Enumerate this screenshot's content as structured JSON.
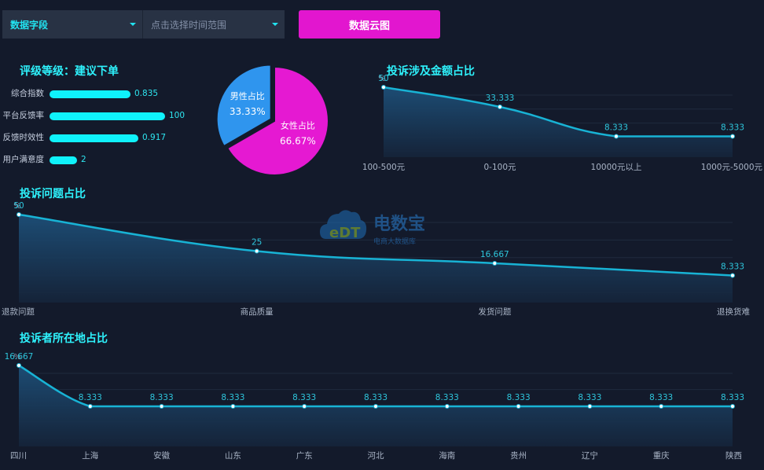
{
  "toolbar": {
    "field_select_label": "数据字段",
    "time_select_placeholder": "点击选择时间范围",
    "wordcloud_button_label": "数据云图"
  },
  "watermark": {
    "logo_text": "eDT",
    "brand_cn": "电数宝",
    "brand_sub": "电商大数据库"
  },
  "colors": {
    "background": "#131a2b",
    "accent_cyan": "#0ff2fb",
    "pie_female": "#e519d2",
    "pie_male": "#2f95ee",
    "line": "#18b3d5",
    "button": "#e216cf"
  },
  "chart_data": [
    {
      "id": "rating",
      "type": "bar",
      "orientation": "horizontal",
      "title": "评级等级：建议下单",
      "categories": [
        "综合指数",
        "平台反馈率",
        "反馈时效性",
        "用户满意度"
      ],
      "values": [
        0.835,
        100,
        0.917,
        2
      ]
    },
    {
      "id": "gender",
      "type": "pie",
      "slices": [
        {
          "label": "女性占比",
          "value": 66.67,
          "value_label": "66.67%",
          "color": "#e519d2"
        },
        {
          "label": "男性占比",
          "value": 33.33,
          "value_label": "33.33%",
          "color": "#2f95ee"
        }
      ]
    },
    {
      "id": "amount",
      "type": "area",
      "title": "投诉涉及金额占比",
      "ylabel": "%",
      "ylim": [
        0,
        50
      ],
      "categories": [
        "100-500元",
        "0-100元",
        "10000元以上",
        "1000元-5000元"
      ],
      "values": [
        50,
        33.333,
        8.333,
        8.333
      ],
      "value_labels": [
        "50",
        "33.333",
        "8.333",
        "8.333"
      ]
    },
    {
      "id": "issue",
      "type": "area",
      "title": "投诉问题占比",
      "ylabel": "%",
      "ylim": [
        0,
        50
      ],
      "categories": [
        "退款问题",
        "商品质量",
        "发货问题",
        "退换货难"
      ],
      "values": [
        50,
        25,
        16.667,
        8.333
      ],
      "value_labels": [
        "50",
        "25",
        "16.667",
        "8.333"
      ]
    },
    {
      "id": "region",
      "type": "area",
      "title": "投诉者所在地占比",
      "ylabel": "%",
      "ylim": [
        0,
        16.667
      ],
      "categories": [
        "四川",
        "上海",
        "安徽",
        "山东",
        "广东",
        "河北",
        "海南",
        "贵州",
        "辽宁",
        "重庆",
        "陕西"
      ],
      "values": [
        16.667,
        8.333,
        8.333,
        8.333,
        8.333,
        8.333,
        8.333,
        8.333,
        8.333,
        8.333,
        8.333
      ],
      "value_labels": [
        "16.667",
        "8.333",
        "8.333",
        "8.333",
        "8.333",
        "8.333",
        "8.333",
        "8.333",
        "8.333",
        "8.333",
        "8.333"
      ]
    }
  ]
}
